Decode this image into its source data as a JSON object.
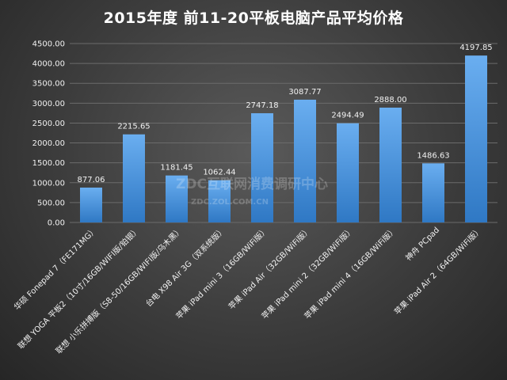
{
  "chart_data": {
    "type": "bar",
    "title": "2015年度 前11-20平板电脑产品平均价格",
    "categories": [
      "华硕 Fonepad 7（FE171MG）",
      "联想 YOGA 平板2（10寸/16GB/WIFI版/铂银）",
      "联想 小乐拼搏版（S8-50/16GB/WIFI版/乌木黑）",
      "台电 X98 Air 3G（双系统版）",
      "苹果 iPad mini 3（16GB/WiFi版）",
      "苹果 iPad Air（32GB/WiFi版）",
      "苹果 iPad mini 2（32GB/WiFi版）",
      "苹果 iPad mini 4（16GB/WiFi版）",
      "神舟 PCpad",
      "苹果 iPad Air 2（64GB/WiFi版）"
    ],
    "values": [
      877.06,
      2215.65,
      1181.45,
      1062.44,
      2747.18,
      3087.77,
      2494.49,
      2888.0,
      1486.63,
      4197.85
    ],
    "value_labels": [
      "877.06",
      "2215.65",
      "1181.45",
      "1062.44",
      "2747.18",
      "3087.77",
      "2494.49",
      "2888.00",
      "1486.63",
      "4197.85"
    ],
    "yticks": [
      "0.00",
      "500.00",
      "1000.00",
      "1500.00",
      "2000.00",
      "2500.00",
      "3000.00",
      "3500.00",
      "4000.00",
      "4500.00"
    ],
    "ylim": [
      0,
      4500
    ],
    "grid": true,
    "legend": "none",
    "bar_color_top": "#6aaef0",
    "bar_color_bottom": "#2f78c4"
  },
  "watermark": {
    "line1": "ZDC互联网消费调研中心",
    "line2": "ZDC.ZOL.COM.CN"
  }
}
